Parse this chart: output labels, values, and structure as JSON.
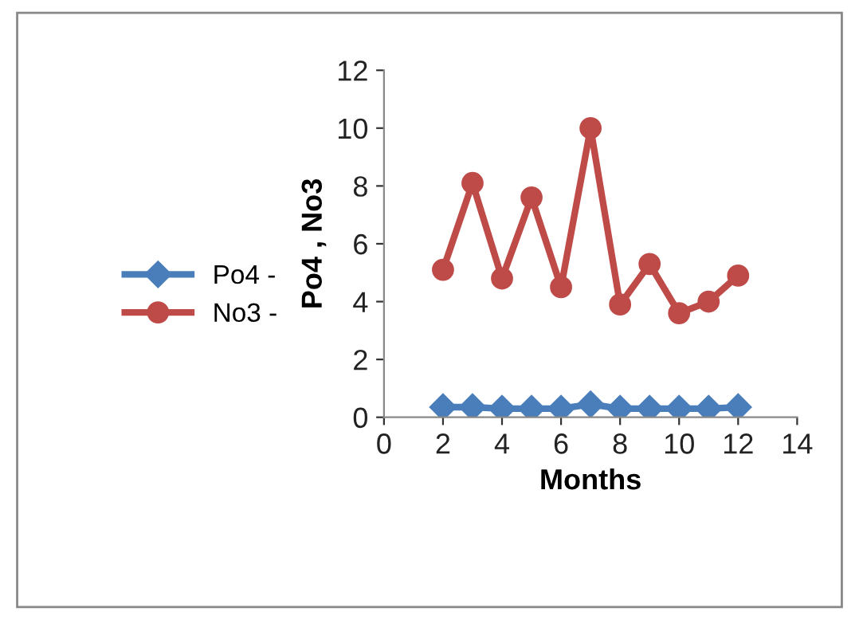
{
  "chart_data": {
    "type": "line",
    "xlabel": "Months",
    "ylabel": "Po4 , No3",
    "x": [
      2,
      3,
      4,
      5,
      6,
      7,
      8,
      9,
      10,
      11,
      12
    ],
    "series": [
      {
        "name": "Po4 -",
        "color": "#4a7ebb",
        "marker": "diamond",
        "values": [
          0.35,
          0.35,
          0.3,
          0.3,
          0.3,
          0.45,
          0.3,
          0.3,
          0.3,
          0.3,
          0.35
        ]
      },
      {
        "name": "No3 -",
        "color": "#be4b48",
        "marker": "circle",
        "values": [
          5.1,
          8.1,
          4.8,
          7.6,
          4.5,
          10.0,
          3.9,
          5.3,
          3.6,
          4.0,
          4.9
        ]
      }
    ],
    "xlim": [
      0,
      14
    ],
    "xticks": [
      0,
      2,
      4,
      6,
      8,
      10,
      12,
      14
    ],
    "ylim": [
      0,
      12
    ],
    "yticks": [
      0,
      2,
      4,
      6,
      8,
      10,
      12
    ],
    "grid": false,
    "legend": "left",
    "line_style": "solid"
  }
}
